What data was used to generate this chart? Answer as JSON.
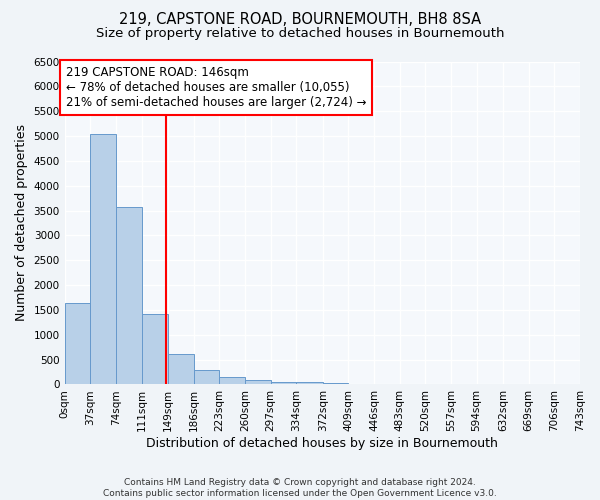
{
  "title": "219, CAPSTONE ROAD, BOURNEMOUTH, BH8 8SA",
  "subtitle": "Size of property relative to detached houses in Bournemouth",
  "xlabel": "Distribution of detached houses by size in Bournemouth",
  "ylabel": "Number of detached properties",
  "bin_edges": [
    0,
    37,
    74,
    111,
    149,
    186,
    223,
    260,
    297,
    334,
    372,
    409,
    446,
    483,
    520,
    557,
    594,
    632,
    669,
    706,
    743
  ],
  "bin_values": [
    1640,
    5050,
    3580,
    1420,
    615,
    295,
    150,
    95,
    58,
    45,
    25,
    10,
    5,
    0,
    0,
    0,
    0,
    0,
    0,
    0
  ],
  "bar_color": "#b8d0e8",
  "bar_edge_color": "#6699cc",
  "property_line_x": 146,
  "property_line_color": "red",
  "annotation_text": "219 CAPSTONE ROAD: 146sqm\n← 78% of detached houses are smaller (10,055)\n21% of semi-detached houses are larger (2,724) →",
  "annotation_box_color": "white",
  "annotation_box_edge_color": "red",
  "ylim": [
    0,
    6500
  ],
  "yticks": [
    0,
    500,
    1000,
    1500,
    2000,
    2500,
    3000,
    3500,
    4000,
    4500,
    5000,
    5500,
    6000,
    6500
  ],
  "footer_line1": "Contains HM Land Registry data © Crown copyright and database right 2024.",
  "footer_line2": "Contains public sector information licensed under the Open Government Licence v3.0.",
  "title_fontsize": 10.5,
  "subtitle_fontsize": 9.5,
  "axis_label_fontsize": 9,
  "tick_fontsize": 7.5,
  "annotation_fontsize": 8.5,
  "footer_fontsize": 6.5,
  "background_color": "#f0f4f8",
  "plot_background_color": "#f5f8fc",
  "grid_color": "#ffffff",
  "tick_labels": [
    "0sqm",
    "37sqm",
    "74sqm",
    "111sqm",
    "149sqm",
    "186sqm",
    "223sqm",
    "260sqm",
    "297sqm",
    "334sqm",
    "372sqm",
    "409sqm",
    "446sqm",
    "483sqm",
    "520sqm",
    "557sqm",
    "594sqm",
    "632sqm",
    "669sqm",
    "706sqm",
    "743sqm"
  ]
}
